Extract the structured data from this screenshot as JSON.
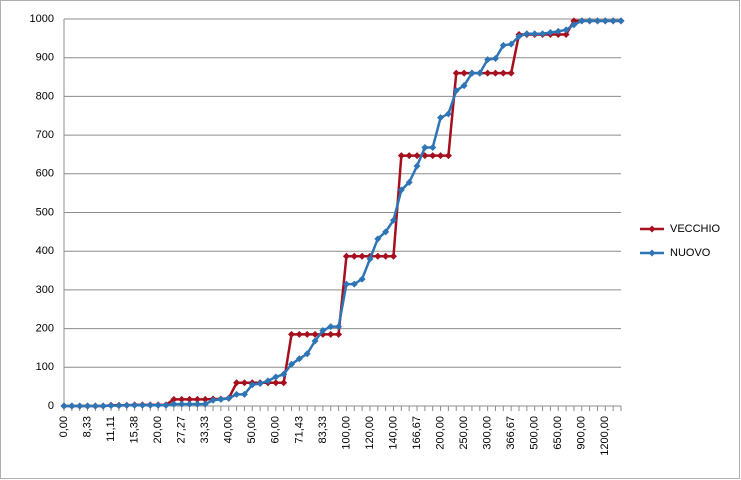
{
  "chart_data": {
    "type": "line",
    "categories": [
      "0,00",
      null,
      null,
      "8,33",
      null,
      null,
      "11,11",
      null,
      null,
      "15,38",
      null,
      null,
      "20,00",
      null,
      null,
      "27,27",
      null,
      null,
      "33,33",
      null,
      null,
      "40,00",
      null,
      null,
      "50,00",
      null,
      null,
      "60,00",
      null,
      null,
      "71,43",
      null,
      null,
      "83,33",
      null,
      null,
      "100,00",
      null,
      null,
      "120,00",
      null,
      null,
      "140,00",
      null,
      null,
      "166,67",
      null,
      null,
      "200,00",
      null,
      null,
      "250,00",
      null,
      null,
      "300,00",
      null,
      null,
      "366,67",
      null,
      null,
      "500,00",
      null,
      null,
      "650,00",
      null,
      null,
      "900,00",
      null,
      null,
      "1200,00",
      null,
      null
    ],
    "series": [
      {
        "name": "VECCHIO",
        "color": "#a50f1e",
        "values": [
          0,
          0,
          0,
          0,
          0,
          0,
          2,
          2,
          2,
          3,
          3,
          3,
          3,
          3,
          17,
          17,
          17,
          17,
          17,
          18,
          18,
          20,
          60,
          60,
          60,
          60,
          60,
          60,
          60,
          185,
          185,
          185,
          185,
          185,
          185,
          185,
          387,
          387,
          387,
          387,
          387,
          387,
          387,
          647,
          647,
          647,
          647,
          647,
          647,
          647,
          860,
          860,
          860,
          860,
          860,
          860,
          860,
          860,
          960,
          960,
          960,
          960,
          960,
          960,
          960,
          995,
          995,
          995,
          995,
          995,
          995,
          995
        ]
      },
      {
        "name": "NUOVO",
        "color": "#2e75b6",
        "values": [
          0,
          0,
          0,
          0,
          0,
          0,
          1,
          1,
          2,
          2,
          2,
          2,
          2,
          2,
          5,
          5,
          5,
          5,
          5,
          15,
          17,
          20,
          30,
          30,
          55,
          58,
          65,
          75,
          82,
          108,
          122,
          135,
          168,
          195,
          205,
          205,
          315,
          315,
          328,
          380,
          432,
          450,
          480,
          558,
          578,
          620,
          668,
          668,
          745,
          755,
          815,
          828,
          860,
          860,
          895,
          898,
          932,
          935,
          955,
          962,
          962,
          962,
          965,
          968,
          972,
          985,
          995,
          995,
          995,
          995,
          995,
          995
        ]
      }
    ],
    "ylim": [
      0,
      1000
    ],
    "yticks": [
      0,
      100,
      200,
      300,
      400,
      500,
      600,
      700,
      800,
      900,
      1000
    ],
    "grid": true,
    "legend": "right"
  }
}
